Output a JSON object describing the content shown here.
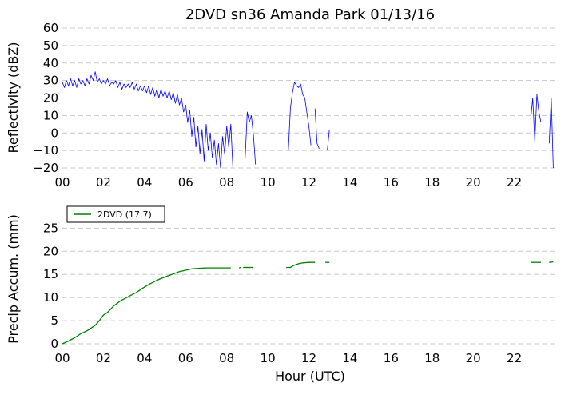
{
  "figure": {
    "title": "2DVD sn36 Amanda Park 01/13/16"
  },
  "chart_data": [
    {
      "type": "line",
      "title": "2DVD sn36 Amanda Park 01/13/16",
      "xlabel": "",
      "ylabel": "Reflectivity (dBZ)",
      "xlim": [
        0,
        24
      ],
      "ylim": [
        -20,
        60
      ],
      "xticks": [
        0,
        2,
        4,
        6,
        8,
        10,
        12,
        14,
        16,
        18,
        20,
        22
      ],
      "xtick_labels": [
        "00",
        "02",
        "04",
        "06",
        "08",
        "10",
        "12",
        "14",
        "16",
        "18",
        "20",
        "22"
      ],
      "yticks": [
        -20,
        -10,
        0,
        10,
        20,
        30,
        40,
        50,
        60
      ],
      "ytick_labels": [
        "−20",
        "−10",
        "0",
        "10",
        "20",
        "30",
        "40",
        "50",
        "60"
      ],
      "grid": "horizontal dashed",
      "color": "#0000ff",
      "series": [
        {
          "name": "",
          "segments": [
            [
              [
                0.0,
                29
              ],
              [
                0.1,
                26
              ],
              [
                0.2,
                30
              ],
              [
                0.3,
                27
              ],
              [
                0.4,
                31
              ],
              [
                0.5,
                27
              ],
              [
                0.6,
                30
              ],
              [
                0.7,
                26
              ],
              [
                0.8,
                31
              ],
              [
                0.9,
                28
              ],
              [
                1.0,
                30
              ],
              [
                1.1,
                27
              ],
              [
                1.2,
                31
              ],
              [
                1.3,
                28
              ],
              [
                1.4,
                33
              ],
              [
                1.5,
                30
              ],
              [
                1.6,
                35
              ],
              [
                1.7,
                29
              ],
              [
                1.8,
                31
              ],
              [
                1.9,
                28
              ],
              [
                2.0,
                30
              ],
              [
                2.1,
                28
              ],
              [
                2.2,
                31
              ],
              [
                2.3,
                27
              ],
              [
                2.4,
                29
              ],
              [
                2.5,
                28
              ],
              [
                2.6,
                30
              ],
              [
                2.7,
                26
              ],
              [
                2.8,
                29
              ],
              [
                2.9,
                25
              ],
              [
                3.0,
                28
              ],
              [
                3.1,
                26
              ],
              [
                3.2,
                28
              ],
              [
                3.3,
                26
              ],
              [
                3.4,
                29
              ],
              [
                3.5,
                25
              ],
              [
                3.6,
                28
              ],
              [
                3.7,
                24
              ],
              [
                3.8,
                27
              ],
              [
                3.9,
                24
              ],
              [
                4.0,
                27
              ],
              [
                4.1,
                23
              ],
              [
                4.2,
                27
              ],
              [
                4.3,
                22
              ],
              [
                4.4,
                26
              ],
              [
                4.5,
                21
              ],
              [
                4.6,
                25
              ],
              [
                4.7,
                20
              ],
              [
                4.8,
                25
              ],
              [
                4.9,
                21
              ],
              [
                5.0,
                24
              ],
              [
                5.1,
                20
              ],
              [
                5.2,
                24
              ],
              [
                5.3,
                19
              ],
              [
                5.4,
                23
              ],
              [
                5.5,
                17
              ],
              [
                5.6,
                22
              ],
              [
                5.7,
                16
              ],
              [
                5.8,
                20
              ],
              [
                5.9,
                12
              ],
              [
                6.0,
                16
              ],
              [
                6.1,
                6
              ],
              [
                6.2,
                13
              ],
              [
                6.3,
                -2
              ],
              [
                6.4,
                9
              ],
              [
                6.5,
                -8
              ],
              [
                6.6,
                4
              ],
              [
                6.7,
                -12
              ],
              [
                6.8,
                2
              ],
              [
                6.9,
                -16
              ],
              [
                7.0,
                5
              ],
              [
                7.1,
                -10
              ],
              [
                7.2,
                0
              ],
              [
                7.3,
                -14
              ],
              [
                7.4,
                -4
              ],
              [
                7.5,
                -18
              ],
              [
                7.6,
                -6
              ],
              [
                7.7,
                -20
              ],
              [
                7.8,
                -2
              ],
              [
                7.9,
                -12
              ],
              [
                8.0,
                4
              ],
              [
                8.1,
                -8
              ],
              [
                8.2,
                5
              ],
              [
                8.3,
                -20
              ]
            ],
            [
              [
                8.9,
                -14
              ],
              [
                9.0,
                12
              ],
              [
                9.1,
                6
              ],
              [
                9.2,
                10
              ],
              [
                9.3,
                -1
              ],
              [
                9.4,
                -18
              ]
            ],
            [
              [
                11.0,
                -10
              ],
              [
                11.1,
                14
              ],
              [
                11.2,
                23
              ],
              [
                11.3,
                29
              ],
              [
                11.4,
                27
              ],
              [
                11.5,
                26
              ],
              [
                11.6,
                28
              ],
              [
                11.7,
                22
              ],
              [
                11.8,
                20
              ],
              [
                11.9,
                12
              ],
              [
                12.0,
                4
              ],
              [
                12.1,
                -7
              ]
            ],
            [
              [
                12.3,
                14
              ],
              [
                12.4,
                -6
              ],
              [
                12.5,
                -9
              ]
            ],
            [
              [
                12.9,
                -10
              ],
              [
                13.0,
                2
              ]
            ],
            [
              [
                22.8,
                8
              ],
              [
                22.9,
                20
              ],
              [
                23.0,
                -5
              ],
              [
                23.1,
                22
              ],
              [
                23.2,
                12
              ],
              [
                23.3,
                6
              ]
            ],
            [
              [
                23.7,
                -6
              ],
              [
                23.8,
                20
              ],
              [
                23.9,
                -20
              ]
            ]
          ]
        }
      ]
    },
    {
      "type": "line",
      "title": "",
      "xlabel": "Hour (UTC)",
      "ylabel": "Precip Accum. (mm)",
      "xlim": [
        0,
        24
      ],
      "ylim": [
        0,
        28
      ],
      "xticks": [
        0,
        2,
        4,
        6,
        8,
        10,
        12,
        14,
        16,
        18,
        20,
        22
      ],
      "xtick_labels": [
        "00",
        "02",
        "04",
        "06",
        "08",
        "10",
        "12",
        "14",
        "16",
        "18",
        "20",
        "22"
      ],
      "yticks": [
        0,
        5,
        10,
        15,
        20,
        25
      ],
      "ytick_labels": [
        "0",
        "5",
        "10",
        "15",
        "20",
        "25"
      ],
      "grid": "horizontal dashed",
      "legend": {
        "position": "top-left",
        "entries": [
          {
            "label": "2DVD (17.7)",
            "color": "#008000"
          }
        ]
      },
      "series": [
        {
          "name": "2DVD (17.7)",
          "color": "#008000",
          "segments": [
            [
              [
                0,
                0
              ],
              [
                0.3,
                0.6
              ],
              [
                0.6,
                1.3
              ],
              [
                0.9,
                2.2
              ],
              [
                1.2,
                2.8
              ],
              [
                1.5,
                3.7
              ],
              [
                1.6,
                4.0
              ],
              [
                1.8,
                5.0
              ],
              [
                2.0,
                6.2
              ],
              [
                2.2,
                6.8
              ],
              [
                2.5,
                8.2
              ],
              [
                2.8,
                9.2
              ],
              [
                3.0,
                9.7
              ],
              [
                3.3,
                10.4
              ],
              [
                3.6,
                11.1
              ],
              [
                3.9,
                12.0
              ],
              [
                4.2,
                12.8
              ],
              [
                4.5,
                13.5
              ],
              [
                4.8,
                14.1
              ],
              [
                5.1,
                14.6
              ],
              [
                5.4,
                15.1
              ],
              [
                5.7,
                15.6
              ],
              [
                6.0,
                15.9
              ],
              [
                6.3,
                16.2
              ],
              [
                6.6,
                16.3
              ],
              [
                7.0,
                16.4
              ],
              [
                7.5,
                16.4
              ],
              [
                8.0,
                16.4
              ],
              [
                8.2,
                16.4
              ]
            ],
            [
              [
                8.6,
                16.4
              ],
              [
                8.7,
                16.5
              ]
            ],
            [
              [
                8.8,
                16.5
              ],
              [
                9.3,
                16.5
              ]
            ],
            [
              [
                10.9,
                16.5
              ],
              [
                11.1,
                16.5
              ],
              [
                11.3,
                17.0
              ],
              [
                11.5,
                17.3
              ],
              [
                11.7,
                17.5
              ],
              [
                12.0,
                17.6
              ],
              [
                12.3,
                17.6
              ]
            ],
            [
              [
                12.8,
                17.6
              ],
              [
                13.0,
                17.6
              ]
            ],
            [
              [
                22.8,
                17.6
              ],
              [
                23.3,
                17.6
              ]
            ],
            [
              [
                23.7,
                17.6
              ],
              [
                23.9,
                17.7
              ]
            ]
          ]
        }
      ]
    }
  ]
}
